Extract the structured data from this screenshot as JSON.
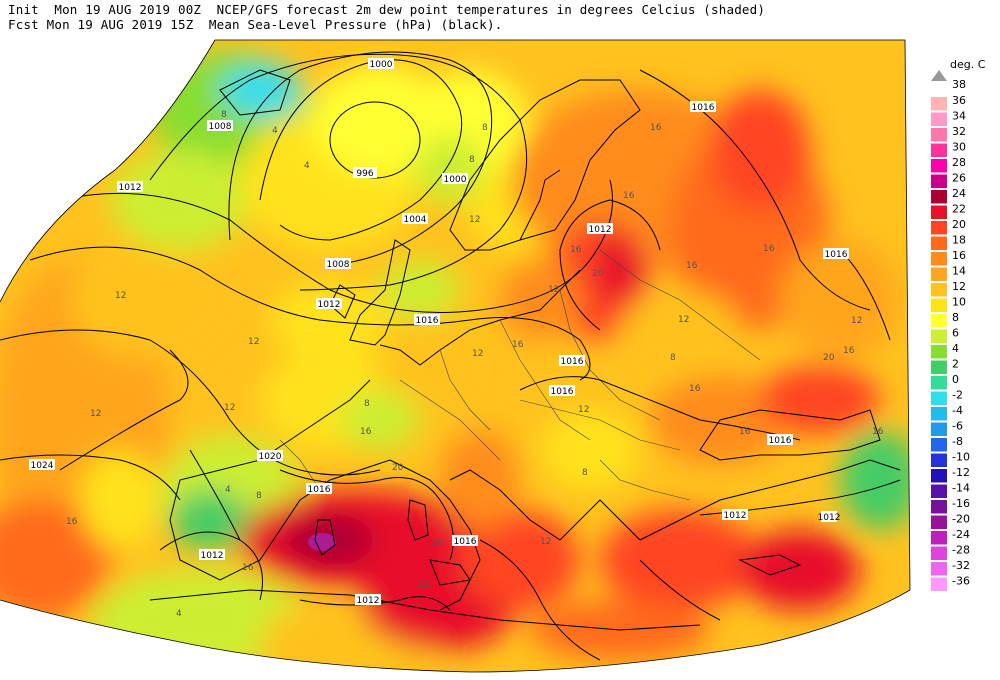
{
  "header": {
    "line1": "Init  Mon 19 AUG 2019 00Z  NCEP/GFS forecast 2m dew point temperatures in degrees Celcius (shaded)",
    "line2": "Fcst Mon 19 AUG 2019 15Z  Mean Sea-Level Pressure (hPa) (black)."
  },
  "legend": {
    "unit": "deg. C",
    "levels": [
      "38",
      "36",
      "34",
      "32",
      "30",
      "28",
      "26",
      "24",
      "22",
      "20",
      "18",
      "16",
      "14",
      "12",
      "10",
      "8",
      "6",
      "4",
      "2",
      "0",
      "-2",
      "-4",
      "-6",
      "-8",
      "-10",
      "-12",
      "-14",
      "-16",
      "-20",
      "-24",
      "-28",
      "-32",
      "-36"
    ],
    "colors": [
      "#ffb3b3",
      "#ff99c8",
      "#ff77aa",
      "#ff3399",
      "#ff00aa",
      "#cc0088",
      "#aa0033",
      "#e8102a",
      "#ff4422",
      "#ff6a1a",
      "#ff8c1a",
      "#ffa51f",
      "#ffc21f",
      "#ffe21a",
      "#ffff33",
      "#ccee33",
      "#88dd33",
      "#44cc66",
      "#33dd99",
      "#33ddee",
      "#22bbee",
      "#2299ee",
      "#2266ee",
      "#2233dd",
      "#2211bb",
      "#5511aa",
      "#771199",
      "#991199",
      "#bb22bb",
      "#dd44dd",
      "#ee66ee",
      "#ff99ff",
      "#ffbbff"
    ]
  },
  "isobars": [
    {
      "text": "1000"
    },
    {
      "text": "996"
    },
    {
      "text": "1000"
    },
    {
      "text": "1004"
    },
    {
      "text": "1008"
    },
    {
      "text": "1008"
    },
    {
      "text": "1012"
    },
    {
      "text": "1012"
    },
    {
      "text": "1016"
    },
    {
      "text": "1016"
    },
    {
      "text": "1016"
    },
    {
      "text": "1016"
    },
    {
      "text": "1016"
    },
    {
      "text": "1012"
    },
    {
      "text": "1016"
    },
    {
      "text": "1020"
    },
    {
      "text": "1024"
    },
    {
      "text": "1016"
    },
    {
      "text": "1012"
    },
    {
      "text": "1012"
    },
    {
      "text": "1016"
    },
    {
      "text": "1012"
    },
    {
      "text": "1012"
    }
  ],
  "dewpoint_labels": [
    {
      "text": "8"
    },
    {
      "text": "4"
    },
    {
      "text": "4"
    },
    {
      "text": "8"
    },
    {
      "text": "8"
    },
    {
      "text": "12"
    },
    {
      "text": "16"
    },
    {
      "text": "16"
    },
    {
      "text": "16"
    },
    {
      "text": "20"
    },
    {
      "text": "16"
    },
    {
      "text": "12"
    },
    {
      "text": "16"
    },
    {
      "text": "12"
    },
    {
      "text": "16"
    },
    {
      "text": "12"
    },
    {
      "text": "8"
    },
    {
      "text": "12"
    },
    {
      "text": "12"
    },
    {
      "text": "8"
    },
    {
      "text": "12"
    },
    {
      "text": "16"
    },
    {
      "text": "16"
    },
    {
      "text": "12"
    },
    {
      "text": "20"
    },
    {
      "text": "16"
    },
    {
      "text": "12"
    },
    {
      "text": "16"
    },
    {
      "text": "12"
    },
    {
      "text": "4"
    },
    {
      "text": "8"
    },
    {
      "text": "16"
    },
    {
      "text": "12"
    },
    {
      "text": "20"
    },
    {
      "text": "20"
    },
    {
      "text": "16"
    },
    {
      "text": "12"
    },
    {
      "text": "8"
    },
    {
      "text": "4"
    },
    {
      "text": "16"
    }
  ]
}
